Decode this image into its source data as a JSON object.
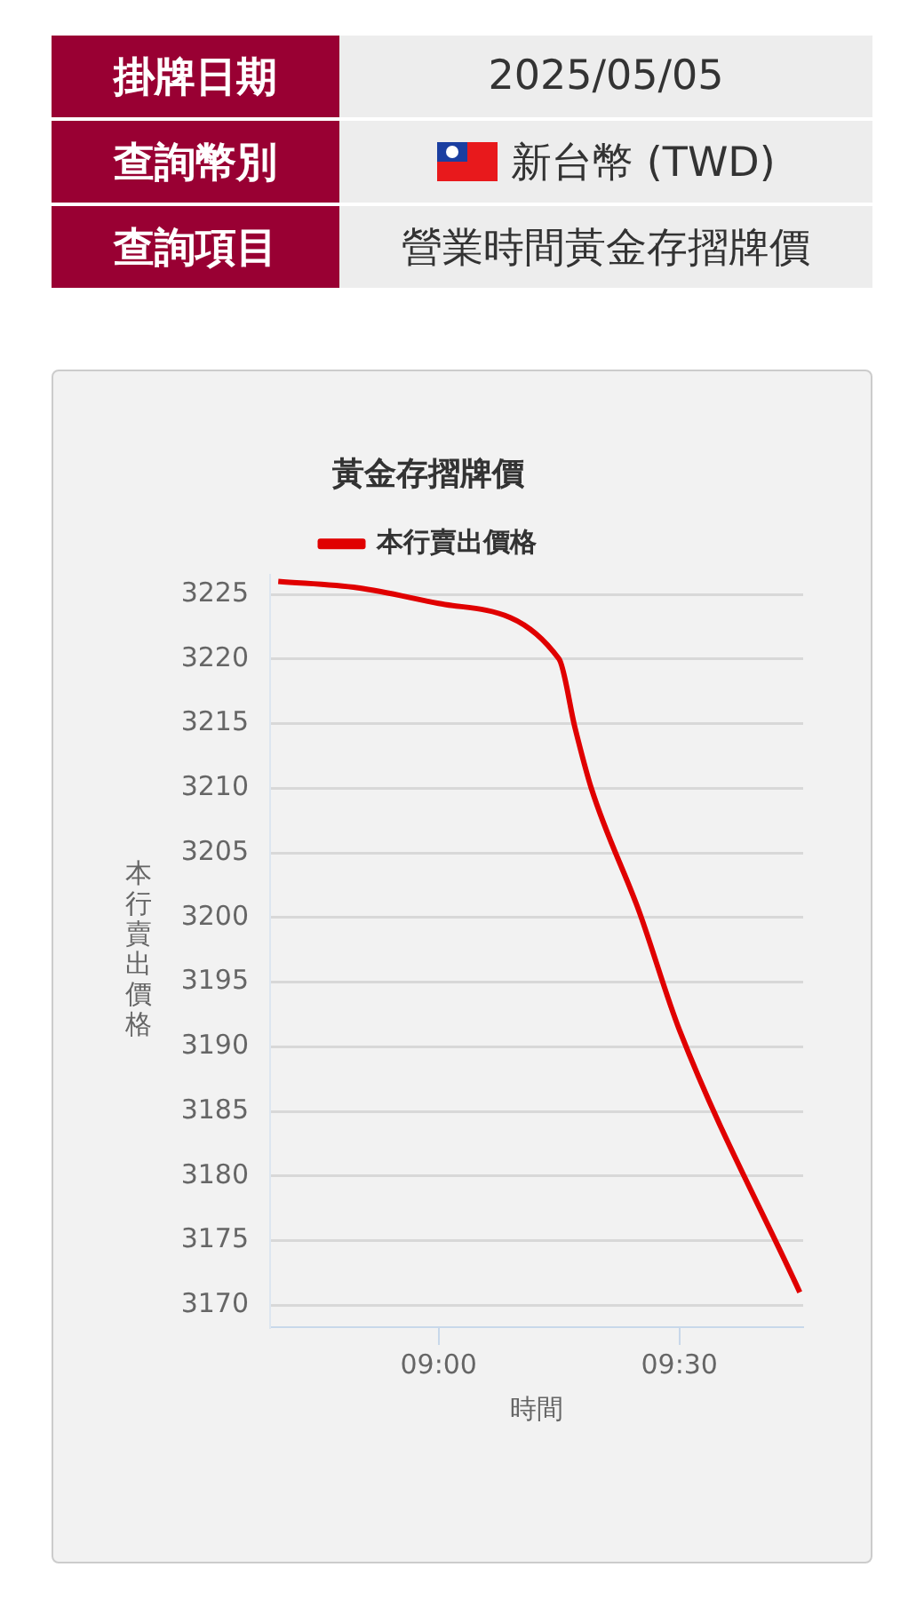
{
  "chart_data": {
    "type": "line",
    "title": "黃金存摺牌價",
    "xlabel": "時間",
    "ylabel": "本行賣出價格",
    "annotations": [
      "掛牌日期",
      "2025/05/05",
      "查詢幣別",
      "新台幣 (TWD)",
      "查詢項目",
      "營業時間黃金存摺牌價"
    ],
    "x": [
      8.667,
      8.833,
      9,
      9.25,
      9.283,
      9.317,
      9.417,
      9.5,
      9.75
    ],
    "series": [
      {
        "name": "本行賣出價格",
        "color": "#e00000",
        "values": [
          3226,
          3225.5,
          3224.3,
          3220,
          3214.7,
          3210,
          3200.4,
          3191.3,
          3171
        ]
      }
    ],
    "xlim": [
      8.65,
      9.757
    ],
    "xticks": [
      {
        "value": 9,
        "label": "09:00"
      },
      {
        "value": 9.5,
        "label": "09:30"
      }
    ],
    "ylim": [
      3168.3,
      3226.5
    ],
    "yticks": [
      3170,
      3175,
      3180,
      3185,
      3190,
      3195,
      3200,
      3205,
      3210,
      3215,
      3220,
      3225
    ],
    "grid": "y",
    "legend": "top",
    "marker": "none",
    "line_style": "solid"
  }
}
